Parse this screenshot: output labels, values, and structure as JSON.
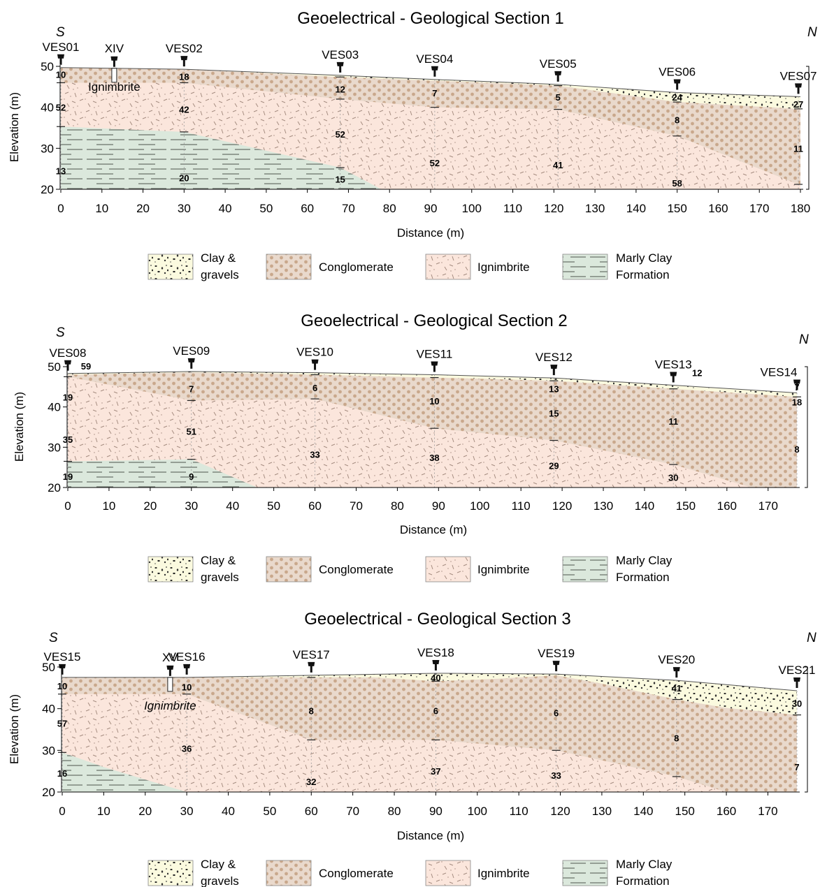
{
  "legend": [
    {
      "key": "clay",
      "label_lines": [
        "Clay &",
        "gravels"
      ],
      "color": "#fbfadf"
    },
    {
      "key": "cong",
      "label_lines": [
        "Conglomerate"
      ],
      "color": "#e9d9cc"
    },
    {
      "key": "ign",
      "label_lines": [
        "Ignimbrite"
      ],
      "color": "#fbe6dc"
    },
    {
      "key": "marl",
      "label_lines": [
        "Marly Clay",
        "Formation"
      ],
      "color": "#dbe8dc"
    }
  ],
  "x_axis": {
    "label": "Distance (m)",
    "ticks": [
      0,
      10,
      20,
      30,
      40,
      50,
      60,
      70,
      80,
      90,
      100,
      110,
      120,
      130,
      140,
      150,
      160,
      170,
      180
    ]
  },
  "y_axis": {
    "ticks": [
      20,
      30,
      40,
      50
    ]
  },
  "sections": [
    {
      "title": "Geoelectrical - Geological Section 1",
      "south": "S",
      "north": "N",
      "y_label": "Elevation (m)",
      "x_max": 180,
      "ticks": [
        0,
        10,
        20,
        30,
        40,
        50,
        60,
        70,
        80,
        90,
        100,
        110,
        120,
        130,
        140,
        150,
        160,
        170,
        180
      ],
      "surface": [
        [
          0,
          49.7
        ],
        [
          30,
          49.3
        ],
        [
          68,
          47.8
        ],
        [
          91,
          46.8
        ],
        [
          121,
          45.6
        ],
        [
          150,
          43.6
        ],
        [
          180,
          42.6
        ]
      ],
      "clay_base": [
        [
          0,
          49.7
        ],
        [
          30,
          49.3
        ],
        [
          68,
          47.4
        ],
        [
          91,
          46.5
        ],
        [
          121,
          45.3
        ],
        [
          150,
          41.3
        ],
        [
          180,
          39.6
        ]
      ],
      "cong_base": [
        [
          0,
          46
        ],
        [
          30,
          46
        ],
        [
          68,
          42
        ],
        [
          91,
          40
        ],
        [
          121,
          39.5
        ],
        [
          150,
          33
        ],
        [
          180,
          21
        ]
      ],
      "marl_top": [
        [
          0,
          35.3
        ],
        [
          30,
          34
        ],
        [
          68,
          25.3
        ],
        [
          78,
          20
        ]
      ],
      "ves": [
        {
          "name": "VES01",
          "x": 0,
          "res": [
            {
              "v": "10",
              "e": 48
            },
            {
              "v": "52",
              "e": 40
            },
            {
              "v": "13",
              "e": 24.5
            }
          ]
        },
        {
          "name": "VES02",
          "x": 30,
          "res": [
            {
              "v": "18",
              "e": 47.5
            },
            {
              "v": "42",
              "e": 39.5
            },
            {
              "v": "20",
              "e": 22.8
            }
          ]
        },
        {
          "name": "VES03",
          "x": 68,
          "res": [
            {
              "v": "12",
              "e": 44.5
            },
            {
              "v": "52",
              "e": 33.5
            },
            {
              "v": "15",
              "e": 22.5
            }
          ]
        },
        {
          "name": "VES04",
          "x": 91,
          "res": [
            {
              "v": "7",
              "e": 43.5
            },
            {
              "v": "52",
              "e": 26.5
            }
          ]
        },
        {
          "name": "VES05",
          "x": 121,
          "res": [
            {
              "v": "5",
              "e": 42.5
            },
            {
              "v": "41",
              "e": 26
            }
          ]
        },
        {
          "name": "VES06",
          "x": 150,
          "res": [
            {
              "v": "24",
              "e": 42.5
            },
            {
              "v": "8",
              "e": 37
            },
            {
              "v": "58",
              "e": 21.5
            }
          ]
        },
        {
          "name": "VES07",
          "x": 179.5,
          "res": [
            {
              "v": "27",
              "e": 40.8
            },
            {
              "v": "11",
              "e": 30
            }
          ]
        }
      ],
      "wells": [
        {
          "name": "XIV",
          "x": 13,
          "label": "Ignimbrite"
        }
      ]
    },
    {
      "title": "Geoelectrical - Geological Section 2",
      "south": "S",
      "north": "N",
      "y_label": "Elevation (m)",
      "x_max": 177,
      "ticks": [
        0,
        10,
        20,
        30,
        40,
        50,
        60,
        70,
        80,
        90,
        100,
        110,
        120,
        130,
        140,
        150,
        160,
        170
      ],
      "surface": [
        [
          0,
          48.3
        ],
        [
          30,
          48.8
        ],
        [
          60,
          48.5
        ],
        [
          89,
          48
        ],
        [
          118,
          47.2
        ],
        [
          147,
          45.4
        ],
        [
          177,
          43.5
        ]
      ],
      "clay_base": [
        [
          0,
          48
        ],
        [
          30,
          48.6
        ],
        [
          60,
          48
        ],
        [
          89,
          47.3
        ],
        [
          118,
          46.5
        ],
        [
          147,
          44.5
        ],
        [
          177,
          42.5
        ]
      ],
      "cong_base": [
        [
          0,
          47.5
        ],
        [
          30,
          41.6
        ],
        [
          60,
          42
        ],
        [
          89,
          34.7
        ],
        [
          118,
          31.7
        ],
        [
          147,
          25.7
        ],
        [
          166,
          20
        ]
      ],
      "marl_top": [
        [
          0,
          26.5
        ],
        [
          30,
          27
        ],
        [
          46,
          20
        ]
      ],
      "ves": [
        {
          "name": "VES08",
          "x": 0,
          "res": [
            {
              "v": "59",
              "e": 50.2
            },
            {
              "v": "19",
              "e": 42.5
            },
            {
              "v": "35",
              "e": 32
            },
            {
              "v": "19",
              "e": 22.8
            }
          ]
        },
        {
          "name": "VES09",
          "x": 30,
          "res": [
            {
              "v": "7",
              "e": 44.5
            },
            {
              "v": "51",
              "e": 34
            },
            {
              "v": "9",
              "e": 22.8
            }
          ]
        },
        {
          "name": "VES10",
          "x": 60,
          "res": [
            {
              "v": "6",
              "e": 44.8
            },
            {
              "v": "33",
              "e": 28.2
            }
          ]
        },
        {
          "name": "VES11",
          "x": 89,
          "res": [
            {
              "v": "10",
              "e": 41.5
            },
            {
              "v": "38",
              "e": 27.5
            }
          ]
        },
        {
          "name": "VES12",
          "x": 118,
          "res": [
            {
              "v": "13",
              "e": 44.5
            },
            {
              "v": "15",
              "e": 38.5
            },
            {
              "v": "29",
              "e": 25.5
            }
          ]
        },
        {
          "name": "VES13",
          "x": 147,
          "res": [
            {
              "v": "12",
              "e": 48.5
            },
            {
              "v": "11",
              "e": 36.5
            },
            {
              "v": "30",
              "e": 22.5
            }
          ]
        },
        {
          "name": "VES14",
          "x": 177,
          "res": [
            {
              "v": "7",
              "e": 45
            },
            {
              "v": "18",
              "e": 41.2
            },
            {
              "v": "8",
              "e": 29.5
            }
          ]
        }
      ],
      "wells": []
    },
    {
      "title": "Geoelectrical - Geological Section 3",
      "south": "S",
      "north": "N",
      "y_label": "Elevation (m)",
      "x_max": 177,
      "ticks": [
        0,
        10,
        20,
        30,
        40,
        50,
        60,
        70,
        80,
        90,
        100,
        110,
        120,
        130,
        140,
        150,
        160,
        170
      ],
      "surface": [
        [
          0,
          47.5
        ],
        [
          30,
          47.5
        ],
        [
          60,
          48
        ],
        [
          90,
          48.5
        ],
        [
          119,
          48.3
        ],
        [
          148,
          46.8
        ],
        [
          177,
          44.3
        ]
      ],
      "clay_base": [
        [
          0,
          47.5
        ],
        [
          30,
          47.5
        ],
        [
          60,
          47.5
        ],
        [
          75,
          47.5
        ],
        [
          90,
          46.6
        ],
        [
          105,
          47.2
        ],
        [
          119,
          48
        ],
        [
          130,
          46
        ],
        [
          148,
          42.2
        ],
        [
          160,
          40.2
        ],
        [
          177,
          38.5
        ]
      ],
      "cong_base": [
        [
          0,
          43.5
        ],
        [
          30,
          43.5
        ],
        [
          60,
          32.5
        ],
        [
          90,
          32.5
        ],
        [
          119,
          30
        ],
        [
          148,
          23.7
        ],
        [
          160,
          20
        ]
      ],
      "marl_top": [
        [
          0,
          29.5
        ],
        [
          10,
          26
        ],
        [
          30,
          20
        ]
      ],
      "ves": [
        {
          "name": "VES15",
          "x": 0,
          "res": [
            {
              "v": "10",
              "e": 45.5
            },
            {
              "v": "57",
              "e": 36.5
            },
            {
              "v": "16",
              "e": 24.5
            }
          ]
        },
        {
          "name": "VES16",
          "x": 30,
          "res": [
            {
              "v": "10",
              "e": 45.2
            },
            {
              "v": "36",
              "e": 30.5
            }
          ]
        },
        {
          "name": "VES17",
          "x": 60,
          "res": [
            {
              "v": "8",
              "e": 39.5
            },
            {
              "v": "32",
              "e": 22.5
            }
          ]
        },
        {
          "name": "VES18",
          "x": 90,
          "res": [
            {
              "v": "40",
              "e": 47.5
            },
            {
              "v": "6",
              "e": 39.5
            },
            {
              "v": "37",
              "e": 25
            }
          ]
        },
        {
          "name": "VES19",
          "x": 119,
          "res": [
            {
              "v": "6",
              "e": 39
            },
            {
              "v": "33",
              "e": 24
            }
          ]
        },
        {
          "name": "VES20",
          "x": 148,
          "res": [
            {
              "v": "41",
              "e": 45
            },
            {
              "v": "8",
              "e": 33
            }
          ]
        },
        {
          "name": "VES21",
          "x": 177,
          "res": [
            {
              "v": "30",
              "e": 41.3
            },
            {
              "v": "7",
              "e": 26
            }
          ]
        }
      ],
      "wells": [
        {
          "name": "XV",
          "x": 26,
          "label": "Ignimbrite"
        }
      ]
    }
  ]
}
